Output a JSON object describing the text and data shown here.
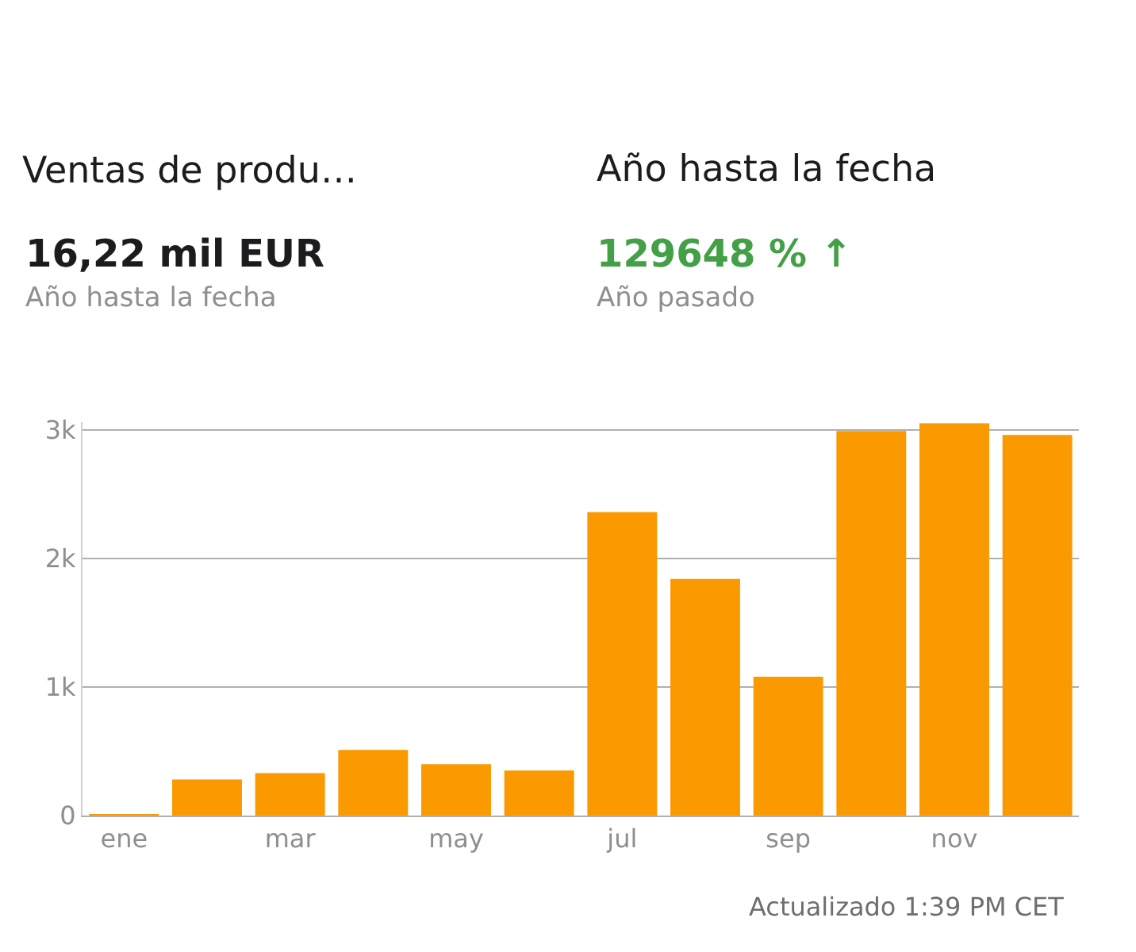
{
  "chart_data": {
    "type": "bar",
    "title": "Ventas de produ…",
    "annotations": [
      "16,22 mil EUR",
      "Año hasta la fecha",
      "Año hasta la fecha",
      "129648 % ↑",
      "Año pasado",
      "Actualizado 1:39 PM CET"
    ],
    "categories": [
      "ene",
      null,
      "mar",
      null,
      "may",
      null,
      "jul",
      null,
      "sep",
      null,
      "nov",
      null
    ],
    "values": [
      10,
      280,
      330,
      510,
      400,
      350,
      2360,
      1840,
      1080,
      2990,
      3050,
      2960
    ],
    "color": "#fb9a00",
    "ylim": [
      0,
      3060
    ],
    "yticks": [
      0,
      {
        "value": 1000,
        "label": "1k"
      },
      {
        "value": 2000,
        "label": "2k"
      },
      {
        "value": 3000,
        "label": "3k"
      }
    ],
    "grid": "y",
    "legend": false
  }
}
